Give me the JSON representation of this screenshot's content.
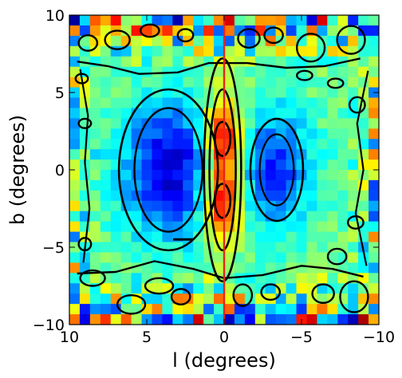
{
  "chart_data": {
    "type": "heatmap",
    "title": "",
    "xlabel": "l (degrees)",
    "ylabel": "b (degrees)",
    "xlim": [
      10,
      -10
    ],
    "ylim": [
      -10,
      10
    ],
    "x_reversed": true,
    "x_ticks": [
      10,
      5,
      0,
      -5,
      -10
    ],
    "x_tick_labels": [
      "10",
      "5",
      "0",
      "−5",
      "−10"
    ],
    "y_ticks": [
      -10,
      -5,
      0,
      5,
      10
    ],
    "y_tick_labels": [
      "−10",
      "−5",
      "0",
      "5",
      "10"
    ],
    "grid": false,
    "grid_cells": [
      30,
      30
    ],
    "colormap": "jet",
    "contour_color": "#000000",
    "reference_line": {
      "l": 0,
      "color": "#e8231f"
    },
    "features": [
      {
        "kind": "high",
        "l": 0.1,
        "b": 2.1,
        "level": 0.95
      },
      {
        "kind": "high",
        "l": 0.1,
        "b": -2.1,
        "level": 0.95
      },
      {
        "kind": "low",
        "l": 3.5,
        "b": 0.0,
        "level": 0.05
      },
      {
        "kind": "low",
        "l": -3.4,
        "b": 0.0,
        "level": 0.08
      }
    ]
  }
}
